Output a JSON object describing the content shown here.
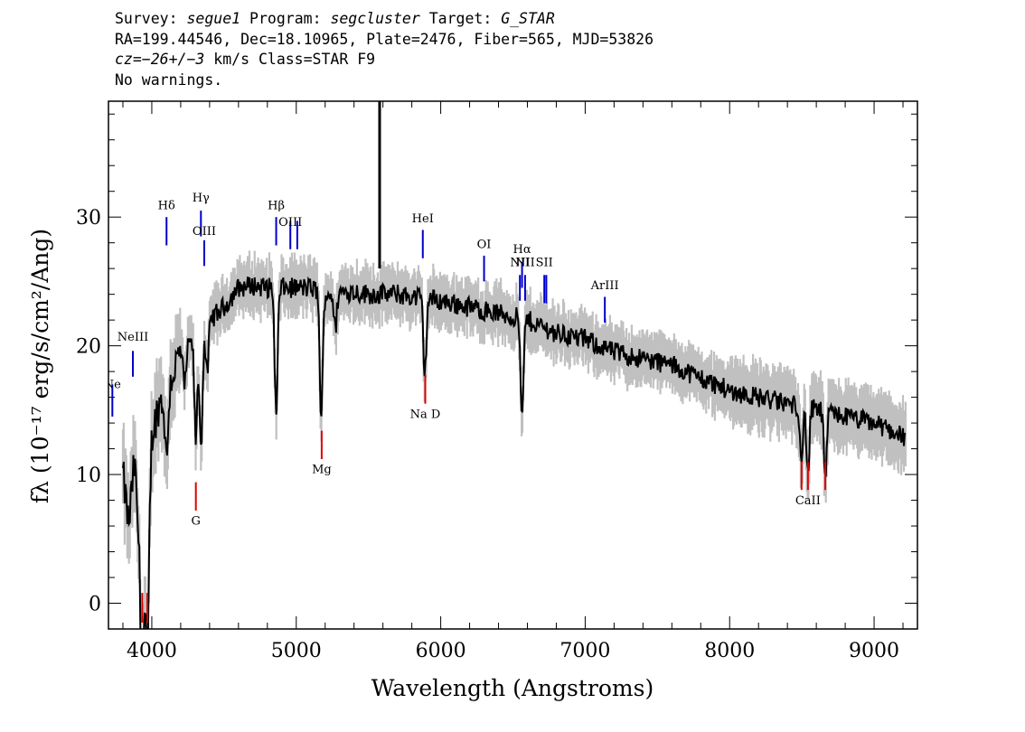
{
  "header": {
    "line1": {
      "survey_label": "Survey: ",
      "survey": "segue1",
      "program_label": " Program: ",
      "program": "segcluster",
      "target_label": " Target: ",
      "target": "G_STAR"
    },
    "line2": "RA=199.44546, Dec=18.10965, Plate=2476, Fiber=565, MJD=53826",
    "line3": {
      "cz": "cz=−26+/−3",
      "rest": " km/s Class=STAR F9"
    },
    "line4": "No warnings."
  },
  "chart_data": {
    "type": "line",
    "title": "",
    "xlabel": "Wavelength (Angstroms)",
    "ylabel": "fλ (10⁻¹⁷ erg/s/cm²/Ang)",
    "xlim": [
      3700,
      9300
    ],
    "ylim": [
      -2,
      39
    ],
    "x_ticks": [
      4000,
      5000,
      6000,
      7000,
      8000,
      9000
    ],
    "y_ticks": [
      0,
      10,
      20,
      30
    ],
    "x_minor_step": 200,
    "y_minor_step": 2,
    "grid": false,
    "colors": {
      "flux": "#000000",
      "error_band": "#c0c0c0",
      "emission_lines": "#0000cc",
      "absorption_lines": "#dd0000"
    },
    "continuum_knots": [
      [
        3800,
        10
      ],
      [
        3840,
        6
      ],
      [
        3880,
        11
      ],
      [
        3920,
        3
      ],
      [
        3950,
        3
      ],
      [
        3970,
        4
      ],
      [
        4000,
        13
      ],
      [
        4050,
        15.5
      ],
      [
        4102,
        16
      ],
      [
        4150,
        18
      ],
      [
        4200,
        19.5
      ],
      [
        4300,
        20.5
      ],
      [
        4400,
        22
      ],
      [
        4500,
        23
      ],
      [
        4600,
        24.5
      ],
      [
        4700,
        24.7
      ],
      [
        4800,
        24.5
      ],
      [
        4900,
        24.5
      ],
      [
        5000,
        24.5
      ],
      [
        5100,
        24.5
      ],
      [
        5200,
        24
      ],
      [
        5300,
        24.2
      ],
      [
        5400,
        24.2
      ],
      [
        5500,
        24
      ],
      [
        5600,
        24
      ],
      [
        5700,
        24
      ],
      [
        5800,
        23.8
      ],
      [
        5900,
        23.7
      ],
      [
        6000,
        23.5
      ],
      [
        6200,
        23
      ],
      [
        6400,
        22.5
      ],
      [
        6600,
        22
      ],
      [
        6800,
        21
      ],
      [
        7000,
        20.5
      ],
      [
        7200,
        19.5
      ],
      [
        7400,
        19
      ],
      [
        7600,
        18.5
      ],
      [
        7800,
        17.5
      ],
      [
        8000,
        16.5
      ],
      [
        8200,
        16
      ],
      [
        8400,
        15.5
      ],
      [
        8600,
        15
      ],
      [
        8800,
        14.5
      ],
      [
        9000,
        14
      ],
      [
        9100,
        13.5
      ],
      [
        9200,
        13
      ]
    ],
    "absorption_features": [
      [
        3934,
        9
      ],
      [
        3969,
        9
      ],
      [
        4102,
        5
      ],
      [
        4227,
        3
      ],
      [
        4305,
        8
      ],
      [
        4341,
        9
      ],
      [
        4383,
        4
      ],
      [
        4861,
        10
      ],
      [
        5173,
        10
      ],
      [
        5270,
        3
      ],
      [
        5890,
        6
      ],
      [
        6563,
        8
      ],
      [
        8498,
        4
      ],
      [
        8542,
        5
      ],
      [
        8662,
        5
      ]
    ],
    "spikes": [
      {
        "x": 5577,
        "y_top": 39,
        "y_bottom": 26
      }
    ],
    "lines": [
      {
        "label": "Ne",
        "x": 3727,
        "color": "blue",
        "y0": 14.5,
        "y1": 17,
        "label_y": 16.7
      },
      {
        "label": "NeIII",
        "x": 3869,
        "color": "blue",
        "y0": 17.6,
        "y1": 19.6,
        "label_y": 20.4
      },
      {
        "label": "Hδ",
        "x": 4102,
        "color": "blue",
        "y0": 27.8,
        "y1": 30,
        "label_y": 30.6
      },
      {
        "label": "Hγ",
        "x": 4340,
        "color": "blue",
        "y0": 28.5,
        "y1": 30.5,
        "label_y": 31.2
      },
      {
        "label": "OIII",
        "x": 4363,
        "color": "blue",
        "y0": 26.2,
        "y1": 28.2,
        "label_y": 28.6
      },
      {
        "label": "Hβ",
        "x": 4861,
        "color": "blue",
        "y0": 27.8,
        "y1": 30,
        "label_y": 30.6
      },
      {
        "label": "OIII",
        "x": 4959,
        "color": "blue",
        "y0": 27.5,
        "y1": 29.7,
        "label_y": 29.3
      },
      {
        "label": "",
        "x": 5007,
        "color": "blue",
        "y0": 27.5,
        "y1": 29.7,
        "label_y": 0
      },
      {
        "label": "HeI",
        "x": 5876,
        "color": "blue",
        "y0": 26.8,
        "y1": 29,
        "label_y": 29.6
      },
      {
        "label": "OI",
        "x": 6300,
        "color": "blue",
        "y0": 25,
        "y1": 27,
        "label_y": 27.6
      },
      {
        "label": "NII",
        "x": 6548,
        "color": "blue",
        "y0": 23.5,
        "y1": 25.5,
        "label_y": 26.2
      },
      {
        "label": "Hα",
        "x": 6563,
        "color": "blue",
        "y0": 24.5,
        "y1": 26.5,
        "label_y": 27.2
      },
      {
        "label": "",
        "x": 6584,
        "color": "blue",
        "y0": 23.5,
        "y1": 25.5,
        "label_y": 0
      },
      {
        "label": "NII",
        "x": 6584,
        "color": "blue",
        "y0": 0,
        "y1": 0,
        "label_y": 26.2
      },
      {
        "label": "SII",
        "x": 6717,
        "color": "blue",
        "y0": 23.3,
        "y1": 25.5,
        "label_y": 26.2
      },
      {
        "label": "",
        "x": 6731,
        "color": "blue",
        "y0": 23.3,
        "y1": 25.5,
        "label_y": 0
      },
      {
        "label": "ArIII",
        "x": 7136,
        "color": "blue",
        "y0": 21.8,
        "y1": 23.8,
        "label_y": 24.4
      },
      {
        "label": "",
        "x": 3934,
        "color": "red",
        "y0": -1.5,
        "y1": 0.8,
        "label_y": 0
      },
      {
        "label": "",
        "x": 3969,
        "color": "red",
        "y0": -1.5,
        "y1": 0.8,
        "label_y": 0
      },
      {
        "label": "G",
        "x": 4305,
        "color": "red",
        "y0": 7.2,
        "y1": 9.4,
        "label_y": 6.1
      },
      {
        "label": "Mg",
        "x": 5176,
        "color": "red",
        "y0": 11.2,
        "y1": 13.4,
        "label_y": 10.1
      },
      {
        "label": "Na D",
        "x": 5893,
        "color": "red",
        "y0": 15.5,
        "y1": 17.7,
        "label_y": 14.4
      },
      {
        "label": "",
        "x": 8498,
        "color": "red",
        "y0": 8.8,
        "y1": 11,
        "label_y": 0
      },
      {
        "label": "CaII",
        "x": 8542,
        "color": "red",
        "y0": 8.8,
        "y1": 11,
        "label_y": 7.7
      },
      {
        "label": "",
        "x": 8662,
        "color": "red",
        "y0": 8.8,
        "y1": 11,
        "label_y": 0
      }
    ]
  }
}
